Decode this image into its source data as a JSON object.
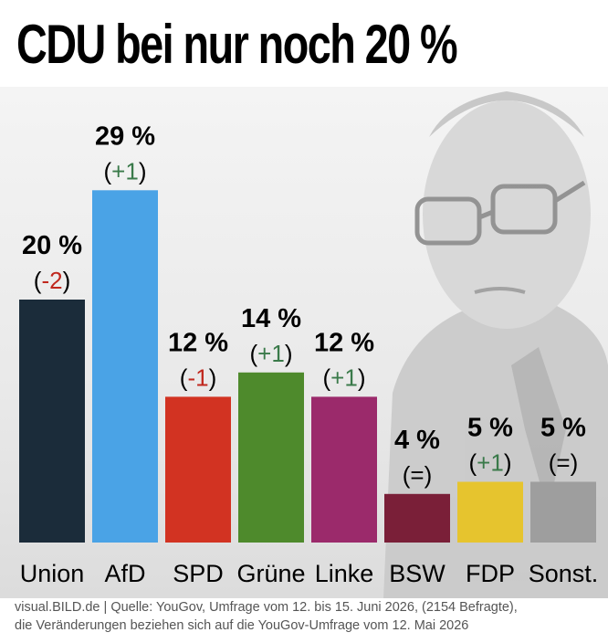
{
  "title": "CDU bei nur noch 20 %",
  "chart_data": {
    "type": "bar",
    "title": "CDU bei nur noch 20 %",
    "categories": [
      "Union",
      "AfD",
      "SPD",
      "Grüne",
      "Linke",
      "BSW",
      "FDP",
      "Sonst."
    ],
    "values": [
      20,
      29,
      12,
      14,
      12,
      4,
      5,
      5
    ],
    "value_labels": [
      "20 %",
      "29 %",
      "12 %",
      "14 %",
      "12 %",
      "4 %",
      "5 %",
      "5 %"
    ],
    "changes": [
      {
        "open": "(",
        "sign": "-",
        "num": "2",
        "close": ")"
      },
      {
        "open": "(",
        "sign": "+",
        "num": "1",
        "close": ")"
      },
      {
        "open": "(",
        "sign": "-",
        "num": "1",
        "close": ")"
      },
      {
        "open": "(",
        "sign": "+",
        "num": "1",
        "close": ")"
      },
      {
        "open": "(",
        "sign": "+",
        "num": "1",
        "close": ")"
      },
      {
        "open": "(",
        "sign": "=",
        "num": "",
        "close": ")"
      },
      {
        "open": "(",
        "sign": "+",
        "num": "1",
        "close": ")"
      },
      {
        "open": "(",
        "sign": "=",
        "num": "",
        "close": ")"
      }
    ],
    "colors": [
      "#1b2c3a",
      "#4aa3e6",
      "#d23322",
      "#4e8a2c",
      "#9b2a6b",
      "#7a1f38",
      "#e6c42e",
      "#9e9e9e"
    ],
    "change_colors": {
      "plus": "#3a7a4a",
      "minus": "#c0281e",
      "neutral": "#000000"
    },
    "ylim": [
      0,
      32
    ],
    "xlabel": "",
    "ylabel": ""
  },
  "footer": {
    "line1": "visual.BILD.de | Quelle: YouGov, Umfrage vom 12. bis 15. Juni 2026, (2154 Befragte),",
    "line2": "die Veränderungen beziehen sich auf die YouGov-Umfrage vom 12. Mai 2026"
  }
}
